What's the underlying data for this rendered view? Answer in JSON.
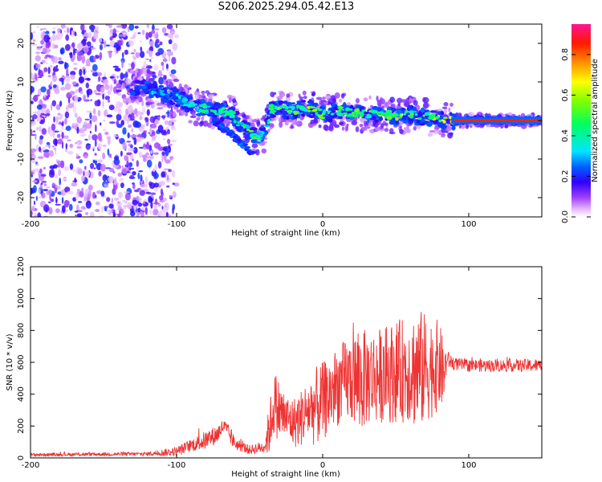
{
  "title": "S206.2025.294.05.42.E13",
  "chart_data": [
    {
      "type": "heatmap",
      "xlabel": "Height of straight line (km)",
      "ylabel": "Frequency (Hz)",
      "xlim": [
        -200,
        150
      ],
      "ylim": [
        -25,
        25
      ],
      "xticks": [
        -200,
        -100,
        0,
        100
      ],
      "yticks": [
        -20,
        -10,
        0,
        10,
        20
      ],
      "colorbar": {
        "label": "Normalized spectral amplitude",
        "range": [
          0,
          0.95
        ],
        "ticks": [
          0.0,
          0.2,
          0.4,
          0.6,
          0.8
        ],
        "colors": [
          "#ffffff",
          "#d9a8ff",
          "#7a00ff",
          "#0000ff",
          "#00ffff",
          "#00ff00",
          "#ffff00",
          "#ff7f00",
          "#ff0000",
          "#ff1493"
        ]
      },
      "ridge": {
        "x": [
          -130,
          -120,
          -110,
          -100,
          -90,
          -80,
          -70,
          -62,
          -55,
          -50,
          -45,
          -40,
          -35,
          -30,
          -20,
          -10,
          0,
          10,
          20,
          30,
          40,
          50,
          60,
          70,
          80,
          90,
          100,
          120,
          150
        ],
        "y": [
          9,
          8.5,
          7,
          6,
          4,
          3,
          2.5,
          1.5,
          -1.5,
          -3,
          -4,
          -3.5,
          3,
          3,
          2.5,
          3.5,
          1.5,
          2.5,
          2,
          1.5,
          2,
          1,
          1.5,
          1,
          0.5,
          0,
          0,
          0,
          0
        ],
        "amp": [
          0.25,
          0.3,
          0.3,
          0.35,
          0.4,
          0.45,
          0.45,
          0.45,
          0.45,
          0.5,
          0.55,
          0.35,
          0.5,
          0.5,
          0.55,
          0.55,
          0.55,
          0.55,
          0.55,
          0.5,
          0.55,
          0.55,
          0.55,
          0.55,
          0.65,
          0.8,
          0.85,
          0.85,
          0.85
        ]
      },
      "secondary_branch": {
        "x": [
          -75,
          -65,
          -55,
          -48
        ],
        "y": [
          0,
          -3,
          -6,
          -9
        ]
      }
    },
    {
      "type": "line",
      "xlabel": "Height of straight line (km)",
      "ylabel": "SNR (10 * v/v)",
      "xlim": [
        -200,
        150
      ],
      "ylim": [
        0,
        1200
      ],
      "xticks": [
        -200,
        -100,
        0,
        100
      ],
      "yticks": [
        0,
        200,
        400,
        600,
        800,
        1000,
        1200
      ],
      "color": "#ee3333",
      "envelope": {
        "x": [
          -200,
          -120,
          -100,
          -90,
          -80,
          -72,
          -68,
          -65,
          -60,
          -50,
          -40,
          -37,
          -33,
          -30,
          -25,
          -20,
          -15,
          -10,
          -5,
          0,
          10,
          20,
          25,
          30,
          40,
          50,
          60,
          65,
          70,
          80,
          83,
          85,
          90,
          100,
          110,
          120,
          130,
          140,
          150
        ],
        "base": [
          20,
          25,
          40,
          80,
          110,
          150,
          200,
          160,
          90,
          50,
          70,
          160,
          350,
          300,
          250,
          220,
          250,
          300,
          320,
          350,
          450,
          500,
          480,
          500,
          520,
          540,
          560,
          550,
          560,
          580,
          520,
          620,
          590,
          580,
          580,
          580,
          580,
          580,
          580
        ],
        "amp": [
          10,
          12,
          30,
          40,
          60,
          60,
          50,
          60,
          40,
          30,
          40,
          150,
          200,
          200,
          150,
          160,
          180,
          200,
          250,
          250,
          250,
          280,
          350,
          300,
          300,
          320,
          340,
          400,
          350,
          280,
          200,
          60,
          40,
          40,
          40,
          40,
          40,
          40,
          40
        ]
      }
    }
  ]
}
